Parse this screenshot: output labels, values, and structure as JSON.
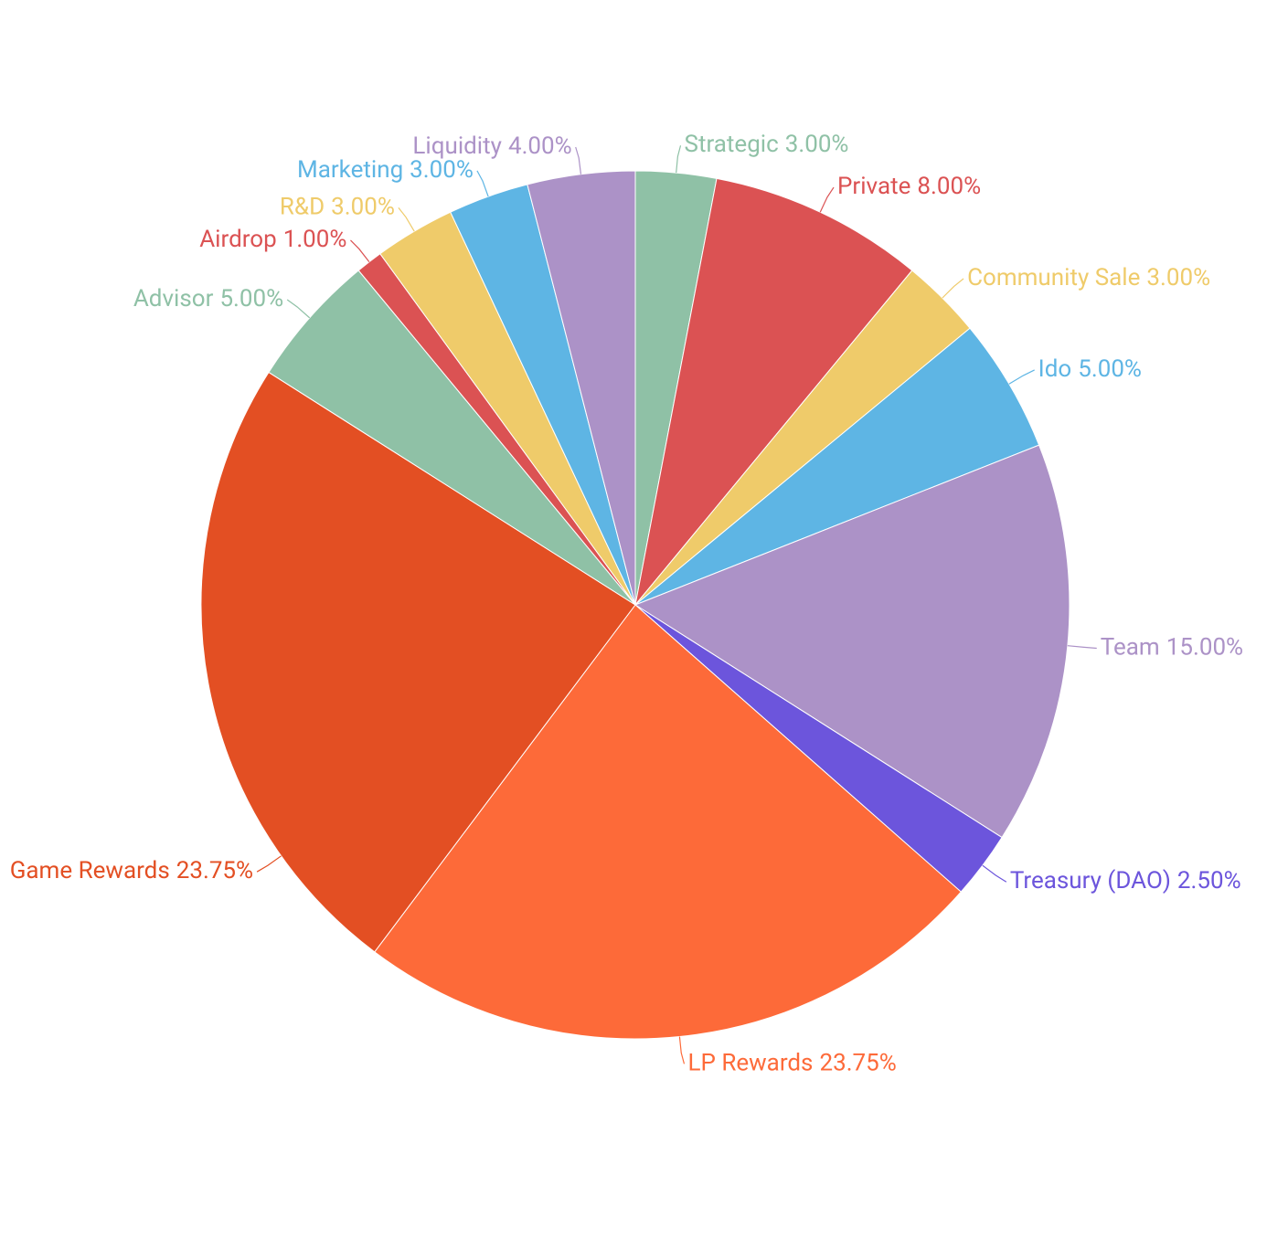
{
  "chart_data": {
    "type": "pie",
    "categories": [
      "Strategic",
      "Private",
      "Community Sale",
      "Ido",
      "Team",
      "Treasury (DAO)",
      "LP Rewards",
      "Game Rewards",
      "Advisor",
      "Airdrop",
      "R&D",
      "Marketing",
      "Liquidity"
    ],
    "values": [
      3,
      8,
      3,
      5,
      15,
      2.5,
      23.75,
      23.75,
      5,
      1,
      3,
      3,
      4
    ],
    "value_labels": [
      "3.00%",
      "8.00%",
      "3.00%",
      "5.00%",
      "15.00%",
      "2.50%",
      "23.75%",
      "23.75%",
      "5.00%",
      "1.00%",
      "3.00%",
      "3.00%",
      "4.00%"
    ],
    "colors": [
      "#8fc1a6",
      "#db5253",
      "#efcb6a",
      "#5eb5e4",
      "#ac92c7",
      "#6c55dc",
      "#fd6a39",
      "#e34f23",
      "#8fc1a6",
      "#db5253",
      "#efcb6a",
      "#5eb5e4",
      "#ac92c7"
    ]
  }
}
